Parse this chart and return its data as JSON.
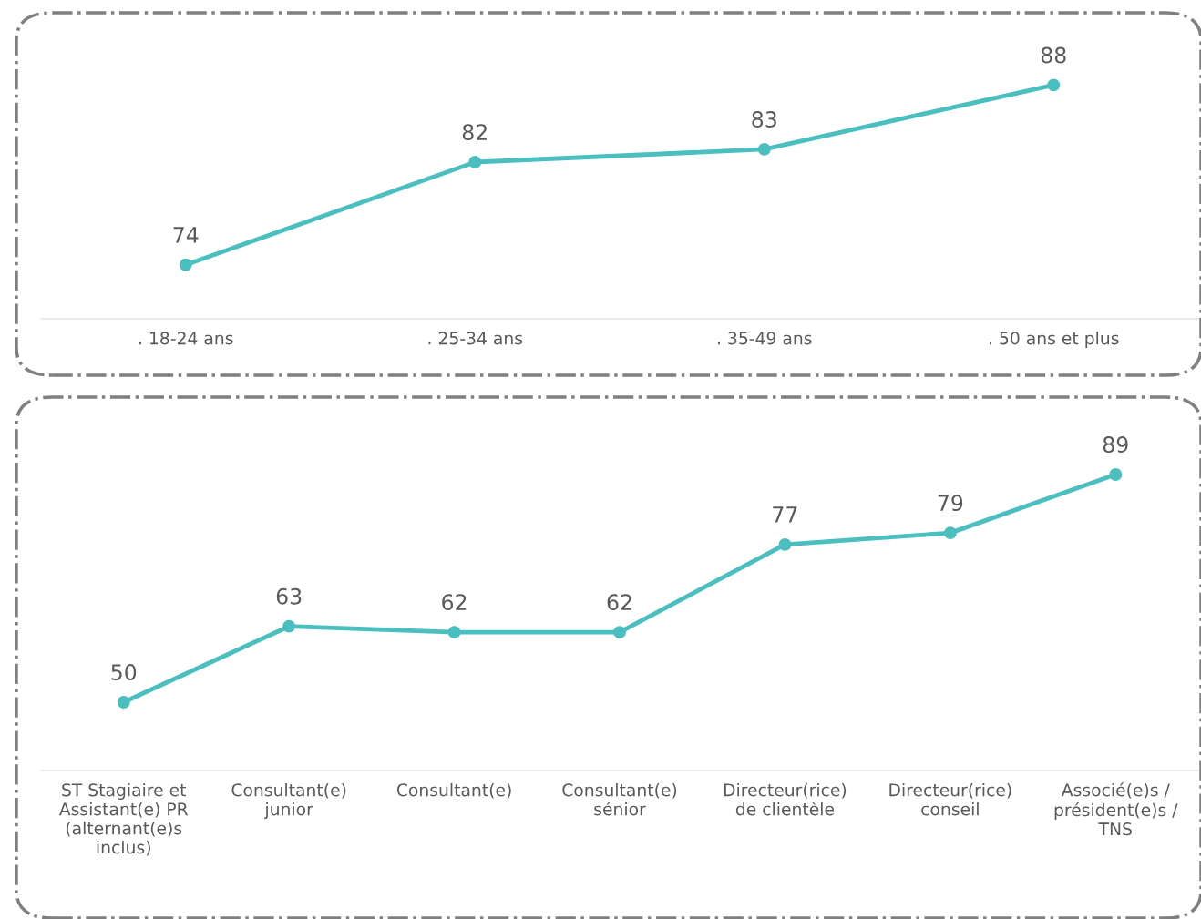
{
  "chart_data": [
    {
      "type": "line",
      "categories": [
        ". 18-24 ans",
        ". 25-34 ans",
        ". 35-49 ans",
        ". 50 ans et plus"
      ],
      "series": [
        {
          "color": "#4bbfbf",
          "values": [
            74,
            82,
            83,
            88
          ]
        }
      ],
      "data_labels": true,
      "marker": "circle",
      "line_style": "solid",
      "grid": false
    },
    {
      "type": "line",
      "categories": [
        "ST Stagiaire et\nAssistant(e) PR\n(alternant(e)s\ninclus)",
        "Consultant(e)\njunior",
        "Consultant(e)",
        "Consultant(e)\nsénior",
        "Directeur(rice)\nde clientèle",
        "Directeur(rice)\nconseil",
        "Associé(e)s /\nprésident(e)s /\nTNS"
      ],
      "series": [
        {
          "color": "#4bbfbf",
          "values": [
            50,
            63,
            62,
            62,
            77,
            79,
            89
          ]
        }
      ],
      "data_labels": true,
      "marker": "circle",
      "line_style": "solid",
      "grid": false
    }
  ]
}
